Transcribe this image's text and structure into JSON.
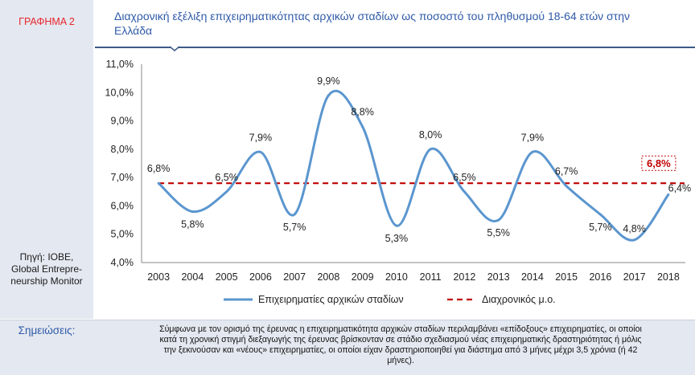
{
  "header": {
    "label": "ΓΡΑΦΗΜΑ 2",
    "title_line1": "Διαχρονική εξέλιξη επιχειρηματικότητας αρχικών σταδίων ως ποσοστό του πληθυσμού 18-64 ετών στην",
    "title_line2": "Ελλάδα"
  },
  "source": {
    "line1": "Πηγή: IOBE,",
    "line2": "Global Entrepre-",
    "line3": "neurship Monitor"
  },
  "notes": {
    "label": "Σημειώσεις:",
    "line1": "Σύμφωνα με τον ορισμό της έρευνας η επιχειρηματικότητα αρχικών σταδίων περιλαμβάνει «επίδοξους» επιχειρηματίες, οι οποίοι",
    "line2": "κατά τη χρονική στιγμή διεξαγωγής της έρευνας βρίσκονταν σε στάδιο σχεδιασμού νέας επιχειρηματικής δραστηριότητας ή μόλις",
    "line3": "την ξεκινούσαν και «νέους» επιχειρηματίες, οι οποίοι είχαν δραστηριοποιηθεί για διάστημα από 3 μήνες μέχρι 3,5 χρόνια (ή 42",
    "line4": "μήνες)."
  },
  "chart_data": {
    "type": "line",
    "x": [
      "2003",
      "2004",
      "2005",
      "2006",
      "2007",
      "2008",
      "2009",
      "2010",
      "2011",
      "2012",
      "2013",
      "2014",
      "2015",
      "2016",
      "2017",
      "2018"
    ],
    "series": [
      {
        "name": "Επιχειρηματίες αρχικών σταδίων",
        "values": [
          6.8,
          5.8,
          6.5,
          7.9,
          5.7,
          9.9,
          8.8,
          5.3,
          8.0,
          6.5,
          5.5,
          7.9,
          6.7,
          5.7,
          4.8,
          6.4
        ],
        "labels": [
          "6,8%",
          "5,8%",
          "6,5%",
          "7,9%",
          "5,7%",
          "9,9%",
          "8,8%",
          "5,3%",
          "8,0%",
          "6,5%",
          "5,5%",
          "7,9%",
          "6,7%",
          "5,7%",
          "4,8%",
          "6,4%"
        ],
        "color": "#5b96cf"
      },
      {
        "name": "Διαχρονικός μ.ο.",
        "value": 6.8,
        "label": "6,8%",
        "color": "#c00000"
      }
    ],
    "y_ticks": [
      "4,0%",
      "5,0%",
      "6,0%",
      "7,0%",
      "8,0%",
      "9,0%",
      "10,0%",
      "11,0%"
    ],
    "ylim": [
      4.0,
      11.0
    ],
    "grid": false,
    "legend_position": "bottom"
  }
}
